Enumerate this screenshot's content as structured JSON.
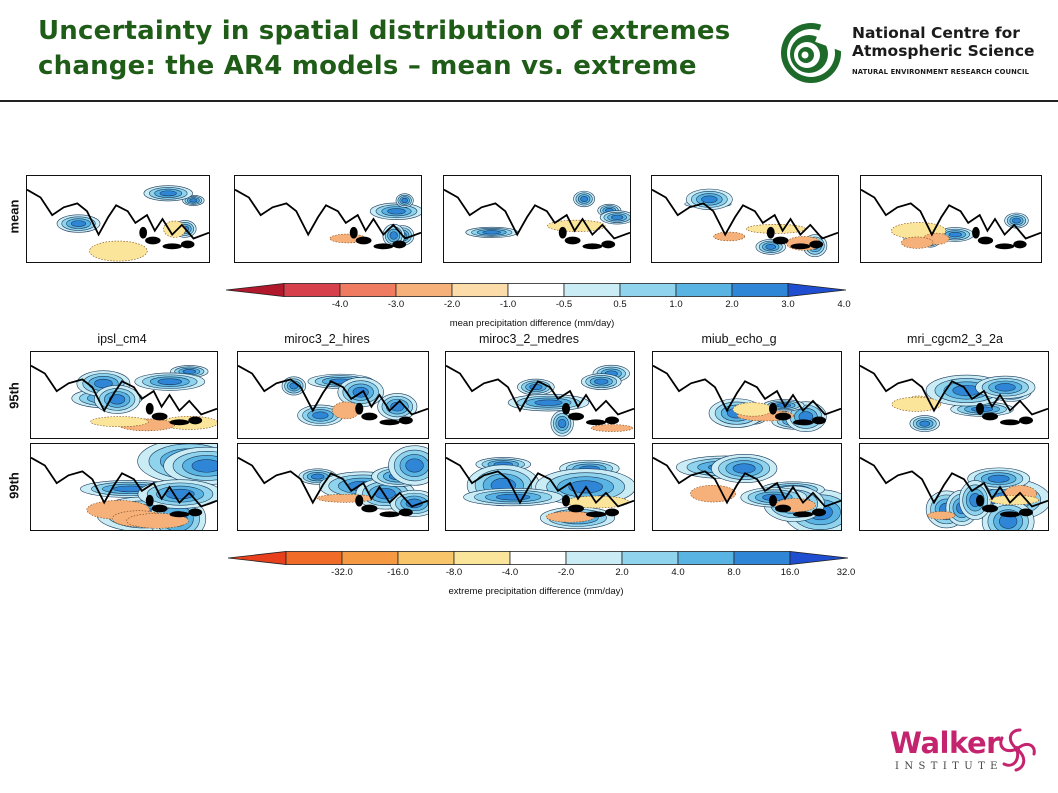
{
  "slide": {
    "title_line1": "Uncertainty in spatial distribution of extremes",
    "title_line2": "change: the AR4 models – mean vs. extreme"
  },
  "ncas_logo": {
    "name_line1": "National Centre for",
    "name_line2": "Atmospheric Science",
    "subtitle": "NATURAL ENVIRONMENT RESEARCH COUNCIL",
    "color": "#1e6a2a"
  },
  "walker_logo": {
    "name": "Walker",
    "subtitle": "INSTITUTE",
    "color": "#c4246e"
  },
  "figure": {
    "row_labels": [
      "mean",
      "95th",
      "99th"
    ],
    "model_names": [
      "ipsl_cm4",
      "miroc3_2_hires",
      "miroc3_2_medres",
      "miub_echo_g",
      "mri_cgcm2_3_2a"
    ],
    "mean_colorbar": {
      "ticks": [
        "-4.0",
        "-3.0",
        "-2.0",
        "-1.0",
        "-0.5",
        "0.5",
        "1.0",
        "2.0",
        "3.0",
        "4.0"
      ],
      "colors": [
        "#b2182b",
        "#d6404b",
        "#ef7b60",
        "#f6b07a",
        "#fcdca8",
        "#ffffff",
        "#c9ecf5",
        "#8fd3ec",
        "#5ab4e3",
        "#2f86d6",
        "#1f4fd0"
      ],
      "label": "mean precipitation difference (mm/day)"
    },
    "extreme_colorbar": {
      "ticks": [
        "-32.0",
        "-16.0",
        "-8.0",
        "-4.0",
        "-2.0",
        "2.0",
        "4.0",
        "8.0",
        "16.0",
        "32.0"
      ],
      "colors": [
        "#e8401c",
        "#f06a28",
        "#f59a42",
        "#f9c56a",
        "#fbe59a",
        "#ffffff",
        "#c9ecf5",
        "#8fd3ec",
        "#5ab4e3",
        "#2f86d6",
        "#1f4fd0"
      ],
      "label": "extreme precipitation difference (mm/day)"
    }
  }
}
